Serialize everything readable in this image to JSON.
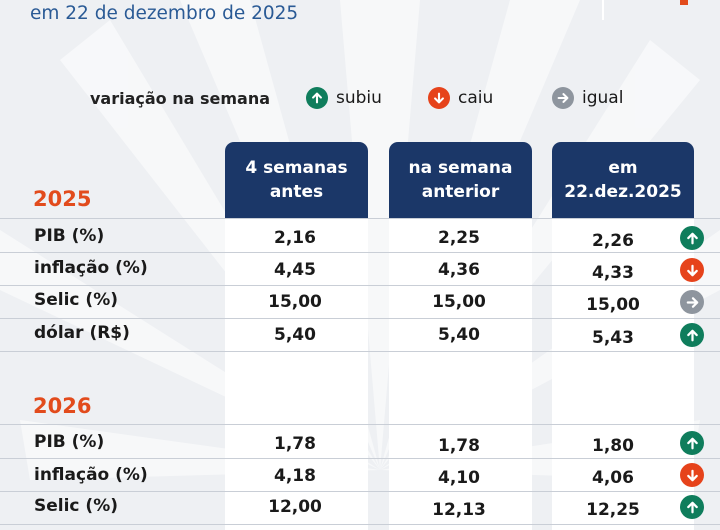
{
  "subtitle": "em 22 de dezembro de 2025",
  "legend": {
    "title": "variação na semana",
    "up_label": "subiu",
    "down_label": "caiu",
    "eq_label": "igual"
  },
  "columns": [
    "4 semanas\nantes",
    "na semana\nanterior",
    "em\n22.dez.2025"
  ],
  "sections": [
    {
      "year": "2025",
      "rows": [
        {
          "label": "PIB (%)",
          "v1": "2,16",
          "v2": "2,25",
          "v3": "2,26",
          "trend": "up"
        },
        {
          "label": "inflação (%)",
          "v1": "4,45",
          "v2": "4,36",
          "v3": "4,33",
          "trend": "down"
        },
        {
          "label": "Selic (%)",
          "v1": "15,00",
          "v2": "15,00",
          "v3": "15,00",
          "trend": "eq"
        },
        {
          "label": "dólar (R$)",
          "v1": "5,40",
          "v2": "5,40",
          "v3": "5,43",
          "trend": "up"
        }
      ]
    },
    {
      "year": "2026",
      "rows": [
        {
          "label": "PIB (%)",
          "v1": "1,78",
          "v2": "1,78",
          "v3": "1,80",
          "trend": "up"
        },
        {
          "label": "inflação (%)",
          "v1": "4,18",
          "v2": "4,10",
          "v3": "4,06",
          "trend": "down"
        },
        {
          "label": "Selic (%)",
          "v1": "12,00",
          "v2": "12,13",
          "v3": "12,25",
          "trend": "up"
        }
      ]
    }
  ],
  "colors": {
    "header_bg": "#1b3768",
    "year": "#e24b1c",
    "up": "#0f7d5c",
    "down": "#e6431b",
    "eq": "#8e959e"
  },
  "icons": {
    "up": "arrow-up-icon",
    "down": "arrow-down-icon",
    "eq": "arrow-right-icon"
  }
}
